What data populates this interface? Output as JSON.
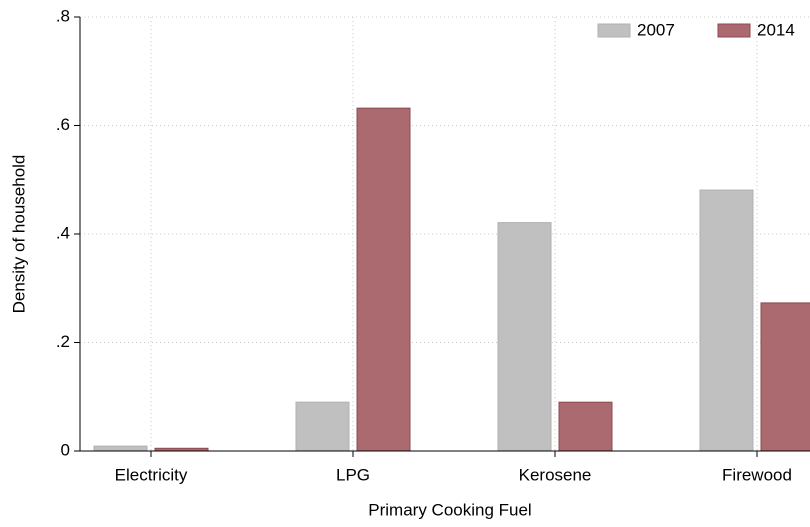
{
  "chart_data": {
    "type": "bar",
    "x_label": "Primary Cooking Fuel",
    "y_label": "Density of household",
    "categories": [
      "Electricity",
      "LPG",
      "Kerosene",
      "Firewood"
    ],
    "series": [
      {
        "name": "2007",
        "color": "#c0c0c0",
        "values": [
          0.009,
          0.09,
          0.421,
          0.481
        ]
      },
      {
        "name": "2014",
        "color": "#ab6a6f",
        "values": [
          0.005,
          0.632,
          0.09,
          0.273
        ]
      }
    ],
    "ylim": [
      0,
      0.8
    ],
    "yticks": [
      0,
      {
        "value": 0.2,
        "label": ".2"
      },
      {
        "value": 0.4,
        "label": ".4"
      },
      {
        "value": 0.6,
        "label": ".6"
      },
      {
        "value": 0.8,
        "label": ".8"
      }
    ],
    "grid": true,
    "legend_position": "top-right"
  }
}
